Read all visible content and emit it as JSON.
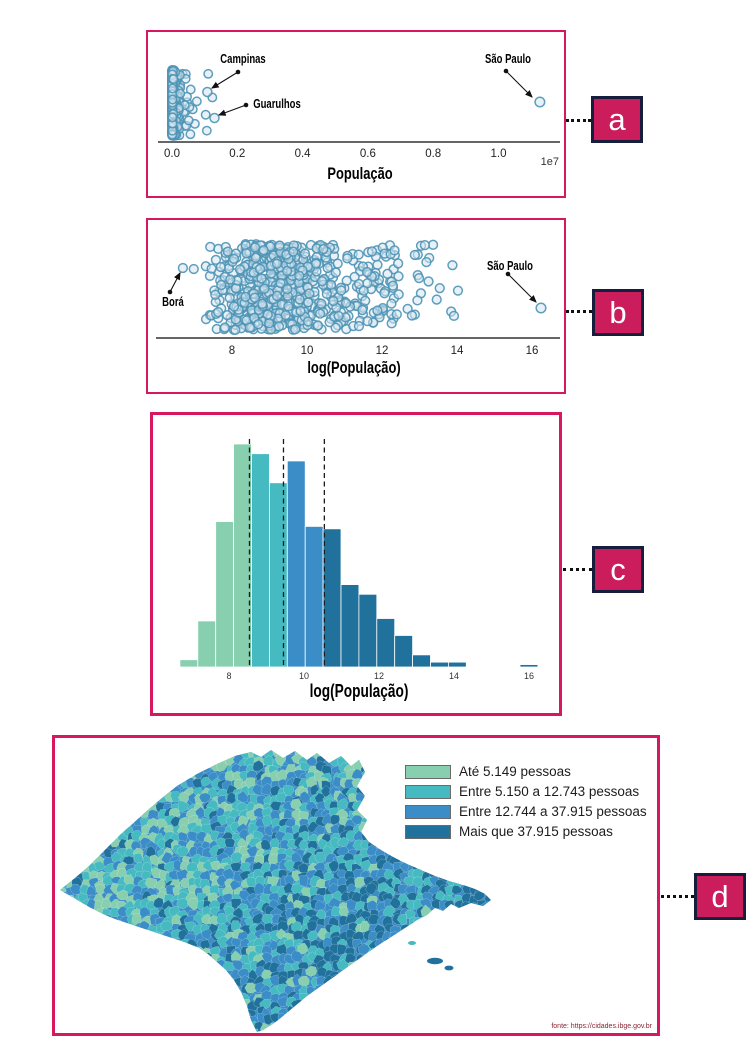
{
  "panels": {
    "a": {
      "badge": "a"
    },
    "b": {
      "badge": "b"
    },
    "c": {
      "badge": "c"
    },
    "d": {
      "badge": "d"
    }
  },
  "charts": {
    "a": {
      "xlabel": "População",
      "offset_label": "1e7",
      "ticks": [
        "0.0",
        "0.2",
        "0.4",
        "0.6",
        "0.8",
        "1.0"
      ],
      "annotations": {
        "campinas": "Campinas",
        "guarulhos": "Guarulhos",
        "sao_paulo": "São Paulo"
      }
    },
    "b": {
      "xlabel": "log(População)",
      "ticks": [
        "8",
        "10",
        "12",
        "14",
        "16"
      ],
      "annotations": {
        "bora": "Borá",
        "sao_paulo": "São Paulo"
      }
    },
    "c": {
      "xlabel": "log(População)",
      "ticks": [
        "8",
        "10",
        "12",
        "14",
        "16"
      ]
    }
  },
  "chart_data": [
    {
      "id": "a",
      "type": "scatter",
      "variant": "strip-plot",
      "title": "",
      "xlabel": "População",
      "x_offset_multiplier": "1e7",
      "xlim": [
        -400000,
        12000000
      ],
      "xticks": [
        0,
        2000000,
        4000000,
        6000000,
        8000000,
        10000000
      ],
      "n_points": 645,
      "distribution": "heavily right-skewed; dense cluster near 0, few outliers",
      "annotations": [
        {
          "label": "Campinas",
          "x": 1080000
        },
        {
          "label": "Guarulhos",
          "x": 1300000
        },
        {
          "label": "São Paulo",
          "x": 11250000
        }
      ]
    },
    {
      "id": "b",
      "type": "scatter",
      "variant": "strip-plot",
      "title": "",
      "xlabel": "log(População)",
      "xlim": [
        6.3,
        16.6
      ],
      "xticks": [
        8,
        10,
        12,
        14,
        16
      ],
      "n_points": 645,
      "distribution": "jittered cloud roughly 7.3 to 14.1, isolated points at extremes",
      "annotations": [
        {
          "label": "Borá",
          "x": 6.69
        },
        {
          "label": "São Paulo",
          "x": 16.24
        }
      ]
    },
    {
      "id": "c",
      "type": "bar",
      "variant": "histogram",
      "title": "",
      "xlabel": "log(População)",
      "xticks": [
        8,
        10,
        12,
        14,
        16
      ],
      "bin_start": 6.691,
      "bin_width": 0.4773,
      "counts": [
        3,
        19,
        60,
        92,
        88,
        76,
        85,
        58,
        57,
        34,
        30,
        20,
        13,
        5,
        2,
        2,
        0,
        0,
        0,
        1
      ],
      "quartile_dashed_lines": [
        8.546,
        9.453,
        10.543
      ],
      "color_breaks": [
        8.546,
        9.453,
        10.543
      ],
      "color_group_names": [
        "green",
        "teal",
        "blue",
        "dark-blue"
      ]
    },
    {
      "id": "d",
      "type": "choropleth",
      "region": "Municípios do estado de São Paulo",
      "classes": [
        {
          "label": "Até 5.149 pessoas",
          "color": "#87cfae"
        },
        {
          "label": "Entre 5.150 a 12.743 pessoas",
          "color": "#45bac1"
        },
        {
          "label": "Entre 12.744 a 37.915 pessoas",
          "color": "#3a8dc6"
        },
        {
          "label": "Mais que 37.915 pessoas",
          "color": "#20719b"
        }
      ],
      "source": "fonte: https://cidades.ibge.gov.br"
    }
  ],
  "map": {
    "legend": [
      {
        "label": "Até 5.149 pessoas",
        "color": "#87cfae"
      },
      {
        "label": "Entre 5.150 a 12.743 pessoas",
        "color": "#45bac1"
      },
      {
        "label": "Entre 12.744 a 37.915 pessoas",
        "color": "#3a8dc6"
      },
      {
        "label": "Mais que 37.915 pessoas",
        "color": "#20719b"
      }
    ],
    "source": "fonte: https://cidades.ibge.gov.br"
  },
  "palette": {
    "frame": "#d6195f",
    "badge_bg": "#cb1c5c",
    "badge_border": "#161d3d",
    "green": "#87cfae",
    "teal": "#45bac1",
    "blue": "#3a8dc6",
    "dark": "#20719b",
    "point_fill": "#d5e6f0",
    "point_stroke": "#4e93b5",
    "axis_dark": "#333333",
    "axis_gray": "#666666",
    "source_color": "#8b2433"
  }
}
